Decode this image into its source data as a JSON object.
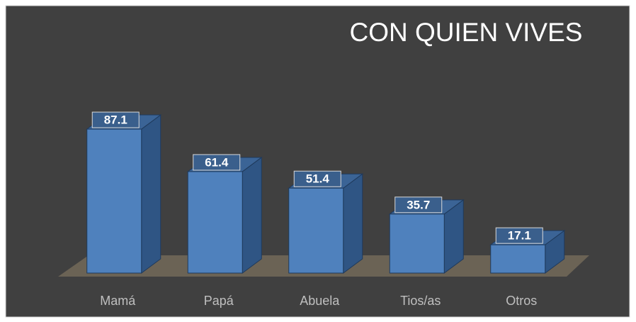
{
  "chart_data": {
    "type": "bar3d",
    "title": "CON QUIEN VIVES",
    "categories": [
      "Mamá",
      "Papá",
      "Abuela",
      "Tios/as",
      "Otros"
    ],
    "values": [
      87.1,
      61.4,
      51.4,
      35.7,
      17.1
    ],
    "color": "#4f81bd",
    "ylim": [
      0,
      100
    ]
  }
}
